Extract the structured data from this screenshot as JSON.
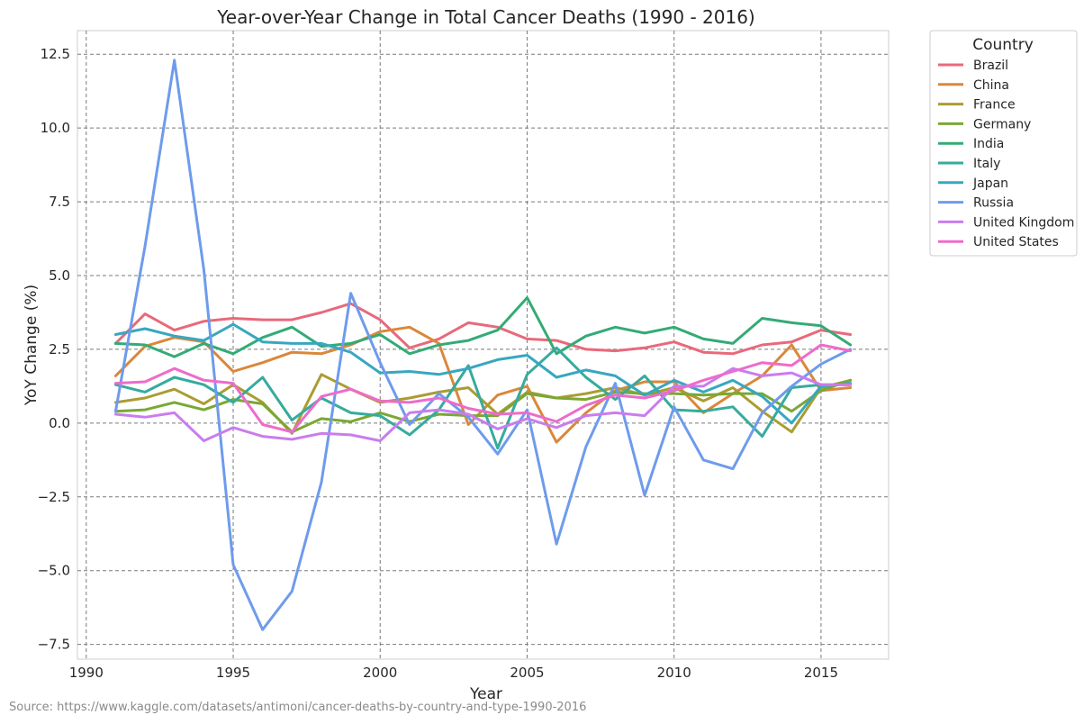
{
  "chart_data": {
    "type": "line",
    "title": "Year-over-Year Change in Total Cancer Deaths (1990 - 2016)",
    "xlabel": "Year",
    "ylabel": "YoY Change (%)",
    "xlim": [
      1989.7,
      2017.3
    ],
    "ylim": [
      -8.0,
      13.3
    ],
    "xticks": [
      1990,
      1995,
      2000,
      2005,
      2010,
      2015
    ],
    "yticks": [
      -7.5,
      -5.0,
      -2.5,
      0.0,
      2.5,
      5.0,
      7.5,
      10.0,
      12.5
    ],
    "ytick_labels": [
      "−7.5",
      "−5.0",
      "−2.5",
      "0.0",
      "2.5",
      "5.0",
      "7.5",
      "10.0",
      "12.5"
    ],
    "grid": true,
    "legend_title": "Country",
    "legend_position": "outside-top-right",
    "x": [
      1991,
      1992,
      1993,
      1994,
      1995,
      1996,
      1997,
      1998,
      1999,
      2000,
      2001,
      2002,
      2003,
      2004,
      2005,
      2006,
      2007,
      2008,
      2009,
      2010,
      2011,
      2012,
      2013,
      2014,
      2015,
      2016
    ],
    "series": [
      {
        "name": "Brazil",
        "color": "#e8697b",
        "values": [
          2.7,
          3.7,
          3.15,
          3.45,
          3.55,
          3.5,
          3.5,
          3.75,
          4.05,
          3.5,
          2.55,
          2.85,
          3.4,
          3.25,
          2.85,
          2.8,
          2.5,
          2.45,
          2.55,
          2.75,
          2.4,
          2.35,
          2.65,
          2.75,
          3.15,
          3.0
        ]
      },
      {
        "name": "China",
        "color": "#db8739",
        "values": [
          1.6,
          2.6,
          2.9,
          2.75,
          1.75,
          2.05,
          2.4,
          2.35,
          2.65,
          3.1,
          3.25,
          2.7,
          -0.05,
          0.95,
          1.25,
          -0.65,
          0.35,
          1.1,
          1.4,
          1.4,
          0.35,
          1.0,
          1.6,
          2.65,
          1.1,
          1.2
        ]
      },
      {
        "name": "France",
        "color": "#ab9c33",
        "values": [
          0.7,
          0.85,
          1.15,
          0.65,
          1.3,
          0.7,
          -0.35,
          1.65,
          1.15,
          0.7,
          0.85,
          1.05,
          1.2,
          0.3,
          1.05,
          0.85,
          1.0,
          1.2,
          0.95,
          1.2,
          0.75,
          1.2,
          0.4,
          -0.3,
          1.2,
          1.45
        ]
      },
      {
        "name": "Germany",
        "color": "#7aa834",
        "values": [
          0.4,
          0.45,
          0.7,
          0.45,
          0.8,
          0.65,
          -0.3,
          0.15,
          0.05,
          0.35,
          0.05,
          0.3,
          0.25,
          0.25,
          1.0,
          0.85,
          0.8,
          1.05,
          1.0,
          1.0,
          0.95,
          1.0,
          1.0,
          0.4,
          1.1,
          1.45
        ]
      },
      {
        "name": "India",
        "color": "#33ab75",
        "values": [
          2.7,
          2.65,
          2.25,
          2.7,
          2.35,
          2.9,
          3.25,
          2.6,
          2.7,
          3.0,
          2.35,
          2.65,
          2.8,
          3.15,
          4.25,
          2.35,
          2.95,
          3.25,
          3.05,
          3.25,
          2.85,
          2.7,
          3.55,
          3.4,
          3.3,
          2.65
        ]
      },
      {
        "name": "Italy",
        "color": "#36ab9e",
        "values": [
          1.3,
          1.05,
          1.55,
          1.3,
          0.7,
          1.55,
          0.1,
          0.85,
          0.35,
          0.25,
          -0.4,
          0.45,
          1.95,
          -0.85,
          1.65,
          2.55,
          1.55,
          0.8,
          1.6,
          0.45,
          0.4,
          0.55,
          -0.45,
          1.2,
          1.3,
          1.3
        ]
      },
      {
        "name": "Japan",
        "color": "#38a7c0",
        "values": [
          3.0,
          3.2,
          2.95,
          2.8,
          3.35,
          2.75,
          2.7,
          2.7,
          2.4,
          1.7,
          1.75,
          1.65,
          1.85,
          2.15,
          2.3,
          1.55,
          1.8,
          1.6,
          0.95,
          1.45,
          1.05,
          1.45,
          0.9,
          0.0,
          1.25,
          1.35
        ]
      },
      {
        "name": "Russia",
        "color": "#6e9bec",
        "values": [
          0.4,
          6.0,
          12.3,
          5.2,
          -4.8,
          -7.0,
          -5.7,
          -2.0,
          4.4,
          2.05,
          -0.05,
          1.0,
          0.2,
          -1.05,
          0.45,
          -4.1,
          -0.8,
          1.35,
          -2.45,
          0.55,
          -1.25,
          -1.55,
          0.35,
          1.25,
          2.0,
          2.5
        ]
      },
      {
        "name": "United Kingdom",
        "color": "#c97ded",
        "values": [
          0.3,
          0.2,
          0.35,
          -0.6,
          -0.15,
          -0.45,
          -0.55,
          -0.35,
          -0.4,
          -0.6,
          0.35,
          0.45,
          0.3,
          -0.2,
          0.15,
          -0.15,
          0.25,
          0.35,
          0.25,
          1.25,
          1.25,
          1.85,
          1.6,
          1.7,
          1.3,
          1.3
        ]
      },
      {
        "name": "United States",
        "color": "#ed6ccb",
        "values": [
          1.35,
          1.4,
          1.85,
          1.45,
          1.35,
          -0.05,
          -0.3,
          0.9,
          1.15,
          0.75,
          0.7,
          0.85,
          0.5,
          0.3,
          0.35,
          0.05,
          0.6,
          0.95,
          0.85,
          1.1,
          1.45,
          1.75,
          2.05,
          1.95,
          2.65,
          2.45
        ]
      }
    ]
  },
  "source_text": "Source: https://www.kaggle.com/datasets/antimoni/cancer-deaths-by-country-and-type-1990-2016"
}
